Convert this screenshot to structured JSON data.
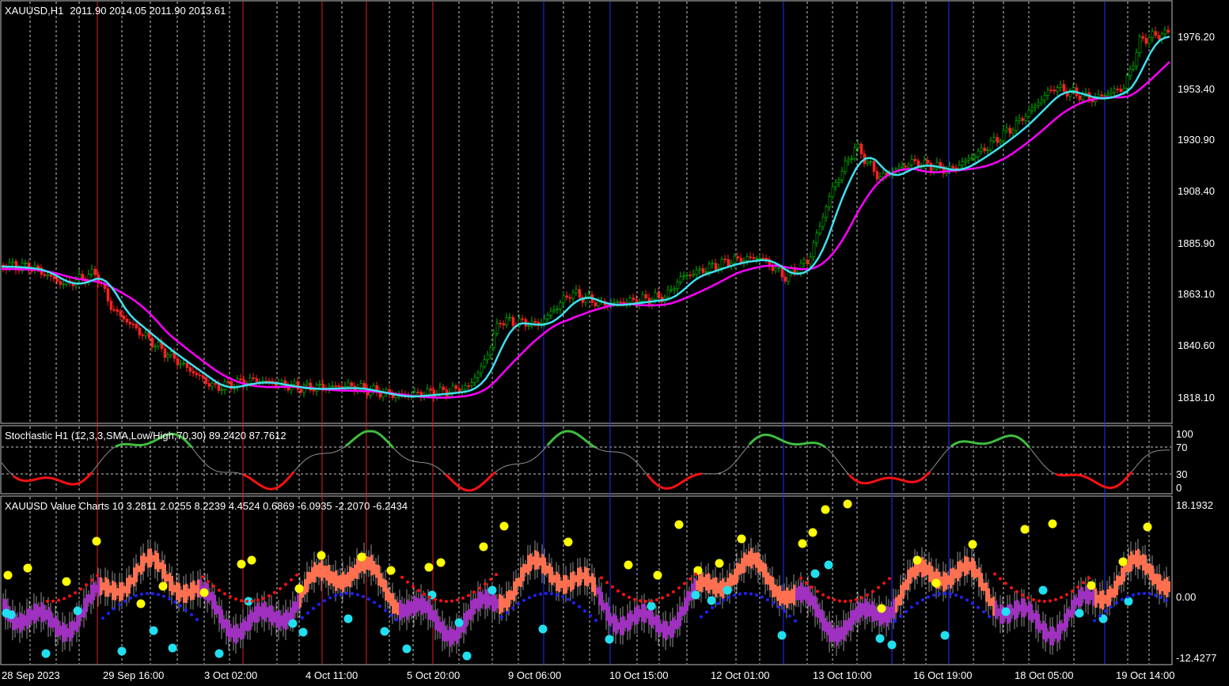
{
  "main": {
    "symbol_label": "XAUUSD,H1",
    "ohlc": "2011.90 2014.05 2011.90 2013.61",
    "price_ticks": [
      "1976.20",
      "1953.40",
      "1930.90",
      "1908.40",
      "1885.90",
      "1863.10",
      "1840.60",
      "1818.10"
    ],
    "colors": {
      "bull": "#00c000",
      "bear": "#ff0000",
      "ma_fast": "#40e0f0",
      "ma_slow": "#ff00ff"
    }
  },
  "stoch": {
    "label": "Stochastic H1 (12,3,3,SMA,Low/High,70,30) 89.2420 87.7612",
    "levels": [
      "100",
      "70",
      "30",
      "0"
    ]
  },
  "value_chart": {
    "label": "XAUUSD Value Charts 10 3.2811 2.0255 8.2239 4.4524 0.6869 -6.0935 -2.2070 -6.2434",
    "ticks": [
      "18.1932",
      "0.00",
      "-12.4277"
    ]
  },
  "time_axis": [
    "28 Sep 2023",
    "29 Sep 16:00",
    "3 Oct 02:00",
    "4 Oct 11:00",
    "5 Oct 20:00",
    "9 Oct 06:00",
    "10 Oct 15:00",
    "12 Oct 01:00",
    "13 Oct 10:00",
    "16 Oct 19:00",
    "18 Oct 05:00",
    "19 Oct 14:00"
  ]
}
